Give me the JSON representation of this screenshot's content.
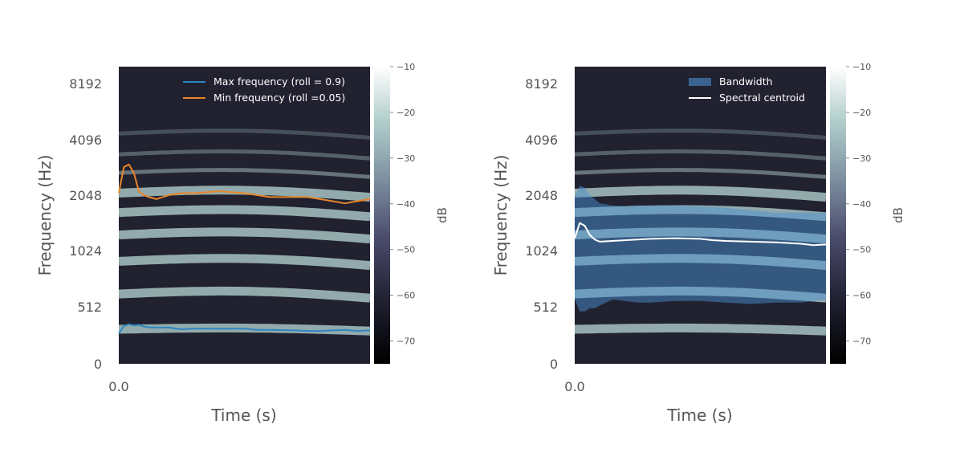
{
  "colors": {
    "background": "#212130",
    "max_line": "#2e86c1",
    "min_line": "#e8862a",
    "bandwidth": "#4a8fd0",
    "centroid": "#ffffff",
    "harmonic": "#b8d8d4"
  },
  "chart_data": [
    {
      "type": "spectrogram",
      "xlabel": "Time (s)",
      "ylabel": "Frequency (Hz)",
      "x_ticks": [
        "0.0"
      ],
      "y_ticks": [
        "0",
        "512",
        "1024",
        "2048",
        "4096",
        "8192"
      ],
      "y_scale": "log2",
      "colorbar": {
        "label": "dB",
        "ticks": [
          "−10",
          "−20",
          "−30",
          "−40",
          "−50",
          "−60",
          "−70"
        ],
        "range": [
          -75,
          -10
        ]
      },
      "legend_position": "top-right",
      "harmonics_hz": [
        310,
        600,
        900,
        1250,
        1650,
        2100,
        2700,
        3400,
        4400
      ],
      "series": [
        {
          "name": "Max frequency (roll = 0.9)",
          "style": "line",
          "t": [
            0,
            0.02,
            0.04,
            0.06,
            0.08,
            0.1,
            0.12,
            0.15,
            0.2,
            0.25,
            0.3,
            0.4,
            0.5,
            0.55,
            0.6,
            0.7,
            0.75,
            0.8,
            0.85,
            0.9,
            0.95,
            1.0
          ],
          "y": [
            270,
            340,
            355,
            345,
            350,
            335,
            328,
            325,
            325,
            310,
            315,
            315,
            315,
            305,
            305,
            300,
            295,
            295,
            300,
            305,
            295,
            300
          ]
        },
        {
          "name": "Min frequency (roll =0.05)",
          "style": "line",
          "t": [
            0,
            0.02,
            0.04,
            0.06,
            0.08,
            0.1,
            0.12,
            0.15,
            0.2,
            0.25,
            0.3,
            0.4,
            0.5,
            0.55,
            0.6,
            0.7,
            0.75,
            0.8,
            0.85,
            0.9,
            0.95,
            1.0
          ],
          "y": [
            2100,
            2900,
            3000,
            2700,
            2150,
            2050,
            2000,
            1950,
            2050,
            2100,
            2100,
            2150,
            2100,
            2050,
            2000,
            2000,
            2000,
            1950,
            1900,
            1850,
            1900,
            1950
          ]
        }
      ]
    },
    {
      "type": "spectrogram",
      "xlabel": "Time (s)",
      "ylabel": "Frequency (Hz)",
      "x_ticks": [
        "0.0"
      ],
      "y_ticks": [
        "0",
        "512",
        "1024",
        "2048",
        "4096",
        "8192"
      ],
      "y_scale": "log2",
      "colorbar": {
        "label": "dB",
        "ticks": [
          "−10",
          "−20",
          "−30",
          "−40",
          "−50",
          "−60",
          "−70"
        ],
        "range": [
          -75,
          -10
        ]
      },
      "legend_position": "top-right",
      "harmonics_hz": [
        310,
        600,
        900,
        1250,
        1650,
        2100,
        2700,
        3400,
        4400
      ],
      "series": [
        {
          "name": "Bandwidth",
          "style": "band",
          "t": [
            0,
            0.02,
            0.04,
            0.06,
            0.08,
            0.1,
            0.15,
            0.2,
            0.25,
            0.3,
            0.4,
            0.5,
            0.6,
            0.7,
            0.8,
            0.9,
            1.0
          ],
          "upper": [
            2000,
            2300,
            2250,
            2050,
            1950,
            1850,
            1800,
            1780,
            1800,
            1800,
            1800,
            1780,
            1750,
            1700,
            1650,
            1650,
            1650
          ],
          "lower": [
            560,
            470,
            470,
            500,
            500,
            520,
            560,
            550,
            540,
            540,
            550,
            550,
            540,
            530,
            540,
            540,
            560
          ]
        },
        {
          "name": "Spectral centroid",
          "style": "line",
          "t": [
            0,
            0.02,
            0.04,
            0.06,
            0.08,
            0.1,
            0.15,
            0.2,
            0.25,
            0.3,
            0.4,
            0.5,
            0.55,
            0.6,
            0.7,
            0.8,
            0.9,
            0.95,
            1.0
          ],
          "y": [
            1200,
            1450,
            1400,
            1250,
            1180,
            1150,
            1160,
            1170,
            1180,
            1190,
            1200,
            1190,
            1170,
            1160,
            1150,
            1140,
            1120,
            1100,
            1110
          ]
        }
      ]
    }
  ]
}
